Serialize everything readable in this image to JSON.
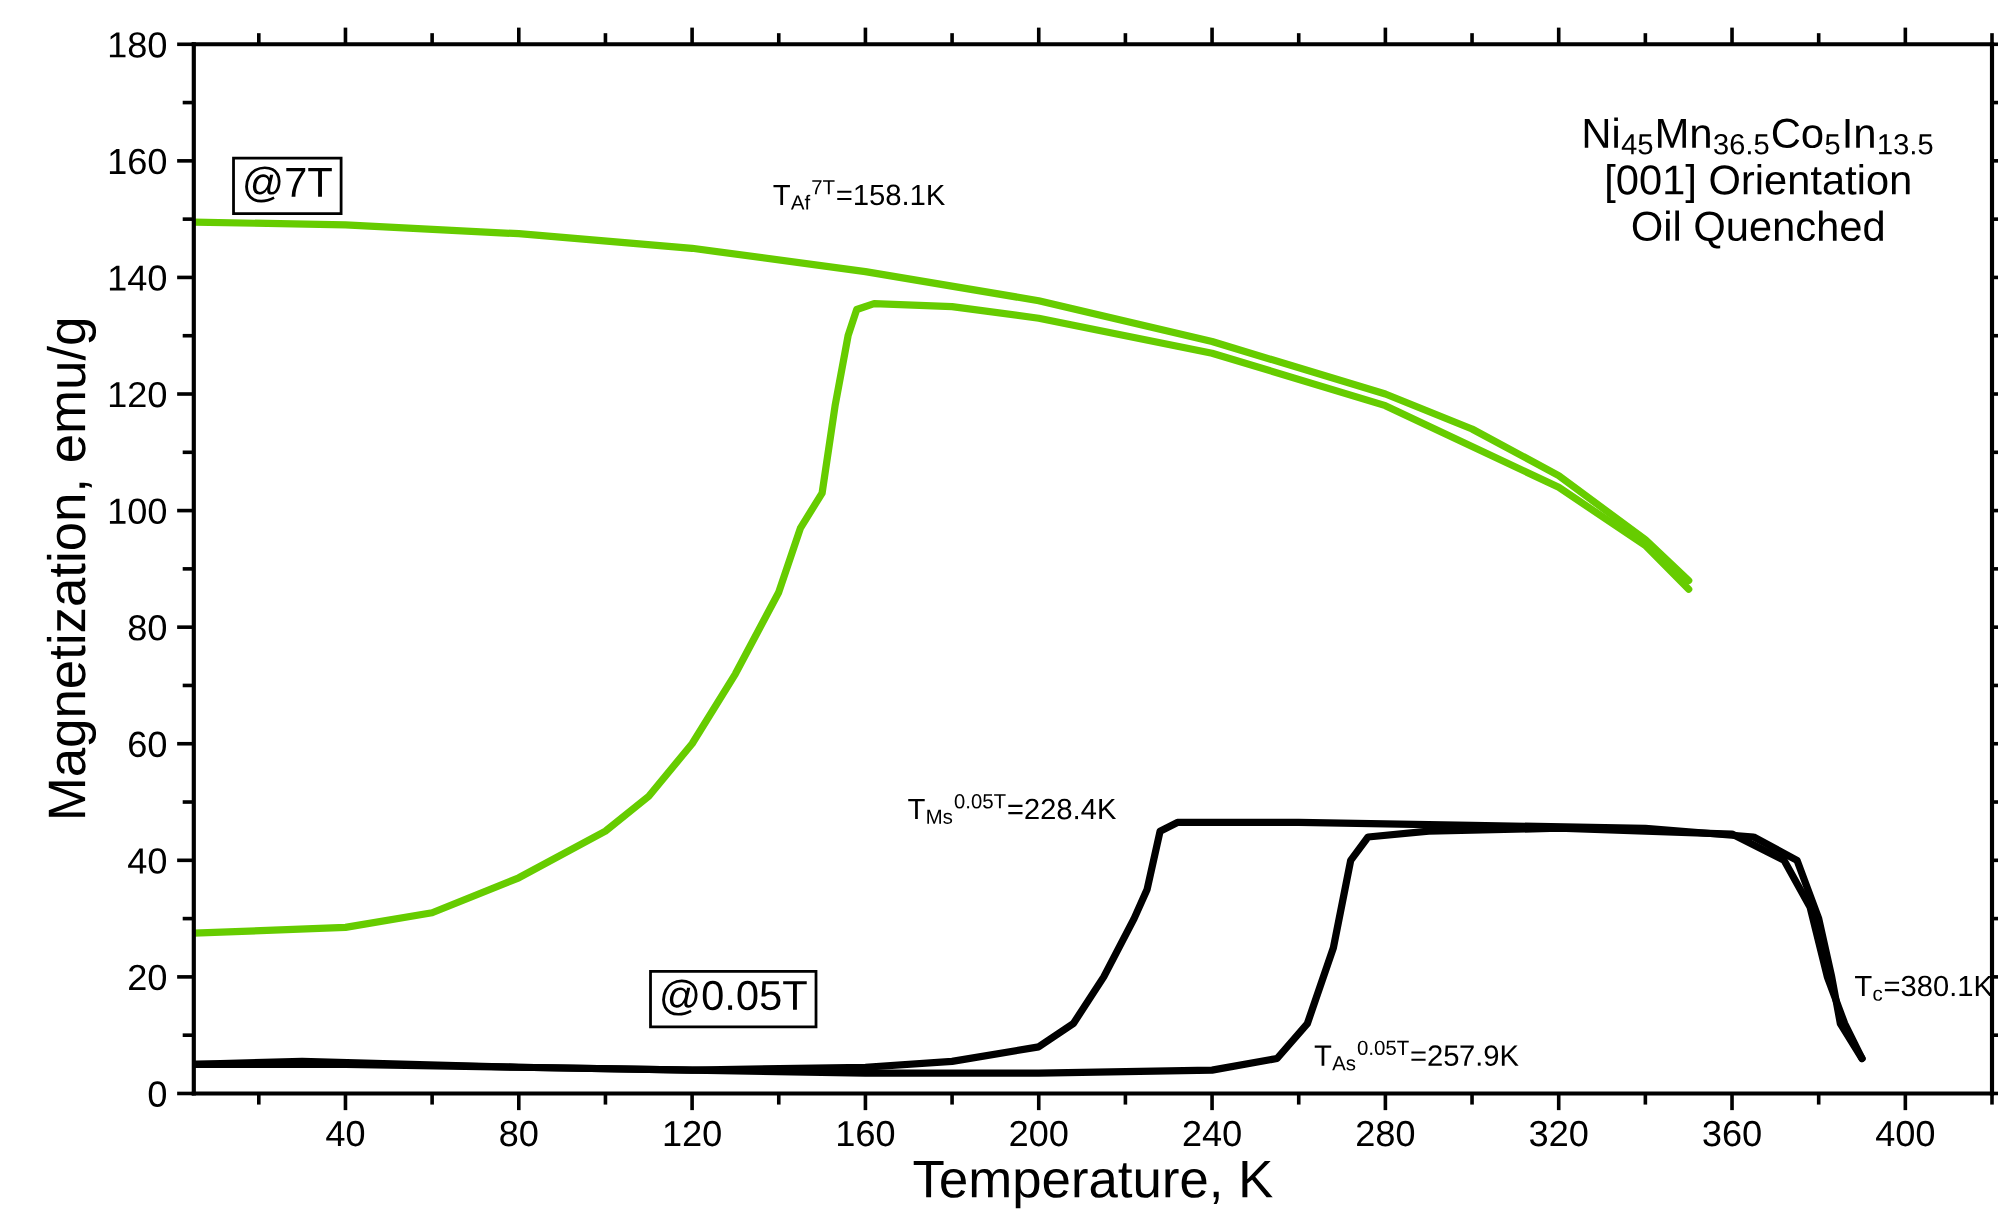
{
  "chart_data": {
    "type": "line",
    "xlabel": "Temperature, K",
    "ylabel": "Magnetization, emu/g",
    "xlim": [
      5,
      420
    ],
    "xticks": [
      40,
      80,
      120,
      160,
      200,
      240,
      280,
      320,
      360,
      400
    ],
    "ylim": [
      0,
      180
    ],
    "yticks": [
      0,
      20,
      40,
      60,
      80,
      100,
      120,
      140,
      160,
      180
    ],
    "grid": false,
    "legend": false,
    "marker": "none",
    "line_style": "solid",
    "series": [
      {
        "color": "#66cc00",
        "x": [
          5,
          40,
          60,
          80,
          100,
          110,
          120,
          130,
          140,
          145,
          150,
          153,
          156,
          158,
          162,
          180,
          200,
          240,
          280,
          320,
          340,
          350
        ],
        "values": [
          27.5,
          28.5,
          31,
          37,
          45,
          51,
          60,
          72,
          86,
          97,
          103,
          118,
          130,
          134.5,
          135.5,
          135,
          133,
          127,
          118,
          104,
          94,
          86.5
        ]
      },
      {
        "color": "#66cc00",
        "x": [
          5,
          40,
          80,
          120,
          160,
          200,
          240,
          280,
          300,
          320,
          340,
          350
        ],
        "values": [
          149.5,
          149,
          147.5,
          145,
          141,
          136,
          129,
          120,
          114,
          106,
          95,
          88
        ]
      },
      {
        "color": "#000000",
        "x": [
          5,
          40,
          80,
          120,
          160,
          200,
          240,
          255,
          262,
          268,
          272,
          276,
          290,
          320,
          360,
          372,
          378,
          382,
          386,
          390
        ],
        "values": [
          5,
          5,
          4.5,
          4,
          3.5,
          3.5,
          4,
          6,
          12,
          25,
          40,
          44,
          45,
          45.5,
          44.5,
          40,
          32,
          20,
          12,
          6
        ]
      },
      {
        "color": "#000000",
        "x": [
          5,
          30,
          80,
          120,
          160,
          180,
          200,
          208,
          215,
          222,
          225,
          228,
          232,
          260,
          300,
          340,
          365,
          375,
          380,
          383,
          385,
          390
        ],
        "values": [
          5,
          5.5,
          4.5,
          4,
          4.5,
          5.5,
          8,
          12,
          20,
          30,
          35,
          45,
          46.5,
          46.5,
          46,
          45.5,
          44,
          40,
          30,
          20,
          12,
          6
        ]
      }
    ],
    "annotations": [
      "@7T",
      "@0.05T",
      "T$_{Af}$$^{7T}$=158.1K",
      "T$_{Ms}$$^{0.05T}$=228.4K",
      "T$_{As}$$^{0.05T}$=257.9K",
      "T$_{c}$=380.1K",
      "Ni$_{45}$Mn$_{36.5}$Co$_{5}$In$_{13.5}$\n[001] Orientation\nOil Quenched"
    ]
  }
}
